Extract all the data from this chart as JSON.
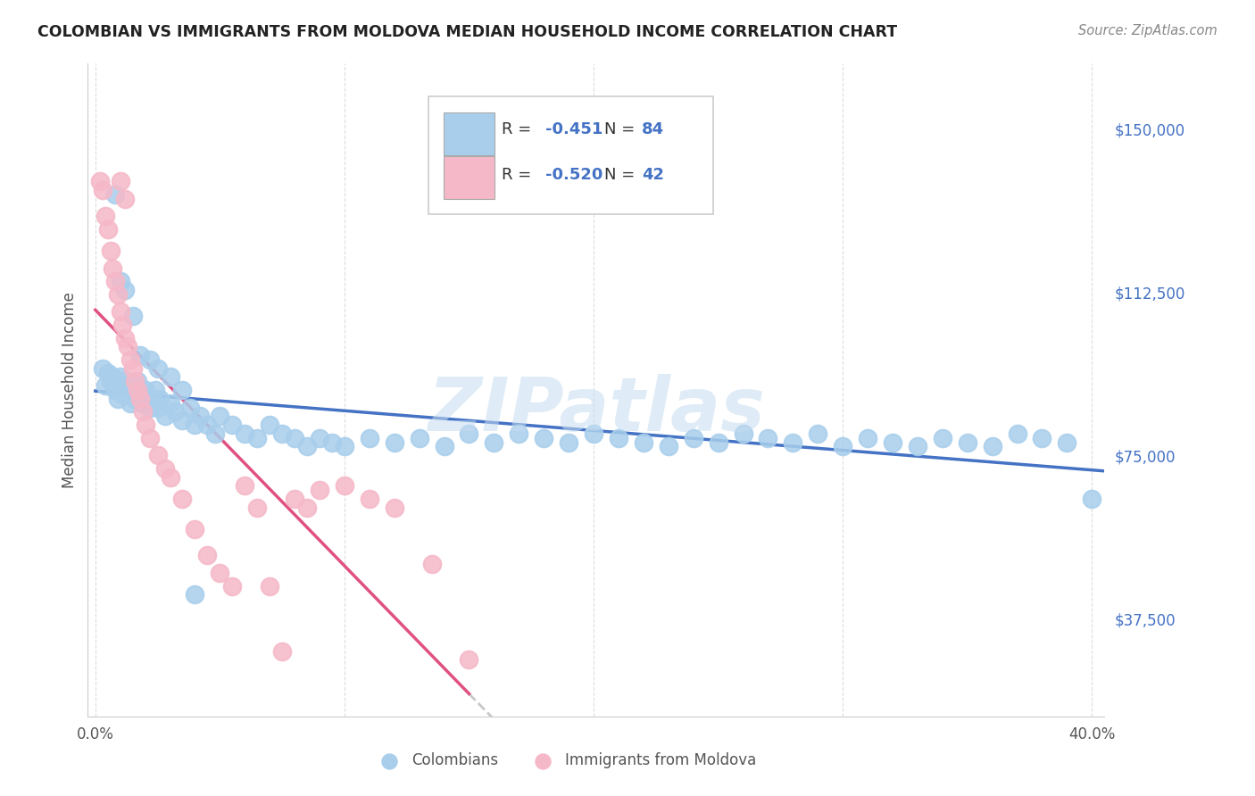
{
  "title": "COLOMBIAN VS IMMIGRANTS FROM MOLDOVA MEDIAN HOUSEHOLD INCOME CORRELATION CHART",
  "source": "Source: ZipAtlas.com",
  "ylabel": "Median Household Income",
  "yticks": [
    37500,
    75000,
    112500,
    150000
  ],
  "ytick_labels": [
    "$37,500",
    "$75,000",
    "$112,500",
    "$150,000"
  ],
  "xlim": [
    -0.003,
    0.405
  ],
  "ylim": [
    15000,
    165000
  ],
  "legend1_label": "Colombians",
  "legend2_label": "Immigrants from Moldova",
  "R1": "-0.451",
  "N1": "84",
  "R2": "-0.520",
  "N2": "42",
  "color_blue": "#A8CEEC",
  "color_pink": "#F5B8C8",
  "color_blue_text": "#4472C4",
  "trendline_blue": "#4472C4",
  "trendline_pink": "#E05080",
  "trendline_gray": "#C8C8C8",
  "watermark": "ZIPatlas",
  "blue_points_x": [
    0.003,
    0.004,
    0.005,
    0.006,
    0.007,
    0.008,
    0.009,
    0.01,
    0.011,
    0.012,
    0.013,
    0.014,
    0.015,
    0.016,
    0.017,
    0.018,
    0.019,
    0.02,
    0.021,
    0.022,
    0.023,
    0.024,
    0.025,
    0.026,
    0.028,
    0.03,
    0.032,
    0.035,
    0.038,
    0.04,
    0.042,
    0.045,
    0.048,
    0.05,
    0.055,
    0.06,
    0.065,
    0.07,
    0.075,
    0.08,
    0.085,
    0.09,
    0.095,
    0.1,
    0.11,
    0.12,
    0.13,
    0.14,
    0.15,
    0.16,
    0.17,
    0.18,
    0.19,
    0.2,
    0.21,
    0.22,
    0.23,
    0.24,
    0.25,
    0.26,
    0.27,
    0.28,
    0.29,
    0.3,
    0.31,
    0.32,
    0.33,
    0.34,
    0.35,
    0.36,
    0.37,
    0.38,
    0.39,
    0.4,
    0.008,
    0.01,
    0.012,
    0.015,
    0.018,
    0.022,
    0.025,
    0.03,
    0.035,
    0.04
  ],
  "blue_points_y": [
    95000,
    91000,
    94000,
    92000,
    93000,
    90000,
    88000,
    93000,
    89000,
    92000,
    91000,
    87000,
    90000,
    88000,
    92000,
    89000,
    87000,
    90000,
    88000,
    86000,
    88000,
    90000,
    86000,
    88000,
    84000,
    87000,
    85000,
    83000,
    86000,
    82000,
    84000,
    82000,
    80000,
    84000,
    82000,
    80000,
    79000,
    82000,
    80000,
    79000,
    77000,
    79000,
    78000,
    77000,
    79000,
    78000,
    79000,
    77000,
    80000,
    78000,
    80000,
    79000,
    78000,
    80000,
    79000,
    78000,
    77000,
    79000,
    78000,
    80000,
    79000,
    78000,
    80000,
    77000,
    79000,
    78000,
    77000,
    79000,
    78000,
    77000,
    80000,
    79000,
    78000,
    65000,
    135000,
    115000,
    113000,
    107000,
    98000,
    97000,
    95000,
    93000,
    90000,
    43000
  ],
  "pink_points_x": [
    0.002,
    0.003,
    0.004,
    0.005,
    0.006,
    0.007,
    0.008,
    0.009,
    0.01,
    0.011,
    0.012,
    0.013,
    0.014,
    0.015,
    0.016,
    0.017,
    0.018,
    0.019,
    0.02,
    0.022,
    0.025,
    0.028,
    0.03,
    0.035,
    0.04,
    0.045,
    0.05,
    0.055,
    0.06,
    0.065,
    0.07,
    0.075,
    0.08,
    0.085,
    0.09,
    0.1,
    0.11,
    0.12,
    0.135,
    0.15,
    0.01,
    0.012
  ],
  "pink_points_y": [
    138000,
    136000,
    130000,
    127000,
    122000,
    118000,
    115000,
    112000,
    108000,
    105000,
    102000,
    100000,
    97000,
    95000,
    92000,
    90000,
    88000,
    85000,
    82000,
    79000,
    75000,
    72000,
    70000,
    65000,
    58000,
    52000,
    48000,
    45000,
    68000,
    63000,
    45000,
    30000,
    65000,
    63000,
    67000,
    68000,
    65000,
    63000,
    50000,
    28000,
    138000,
    134000
  ]
}
